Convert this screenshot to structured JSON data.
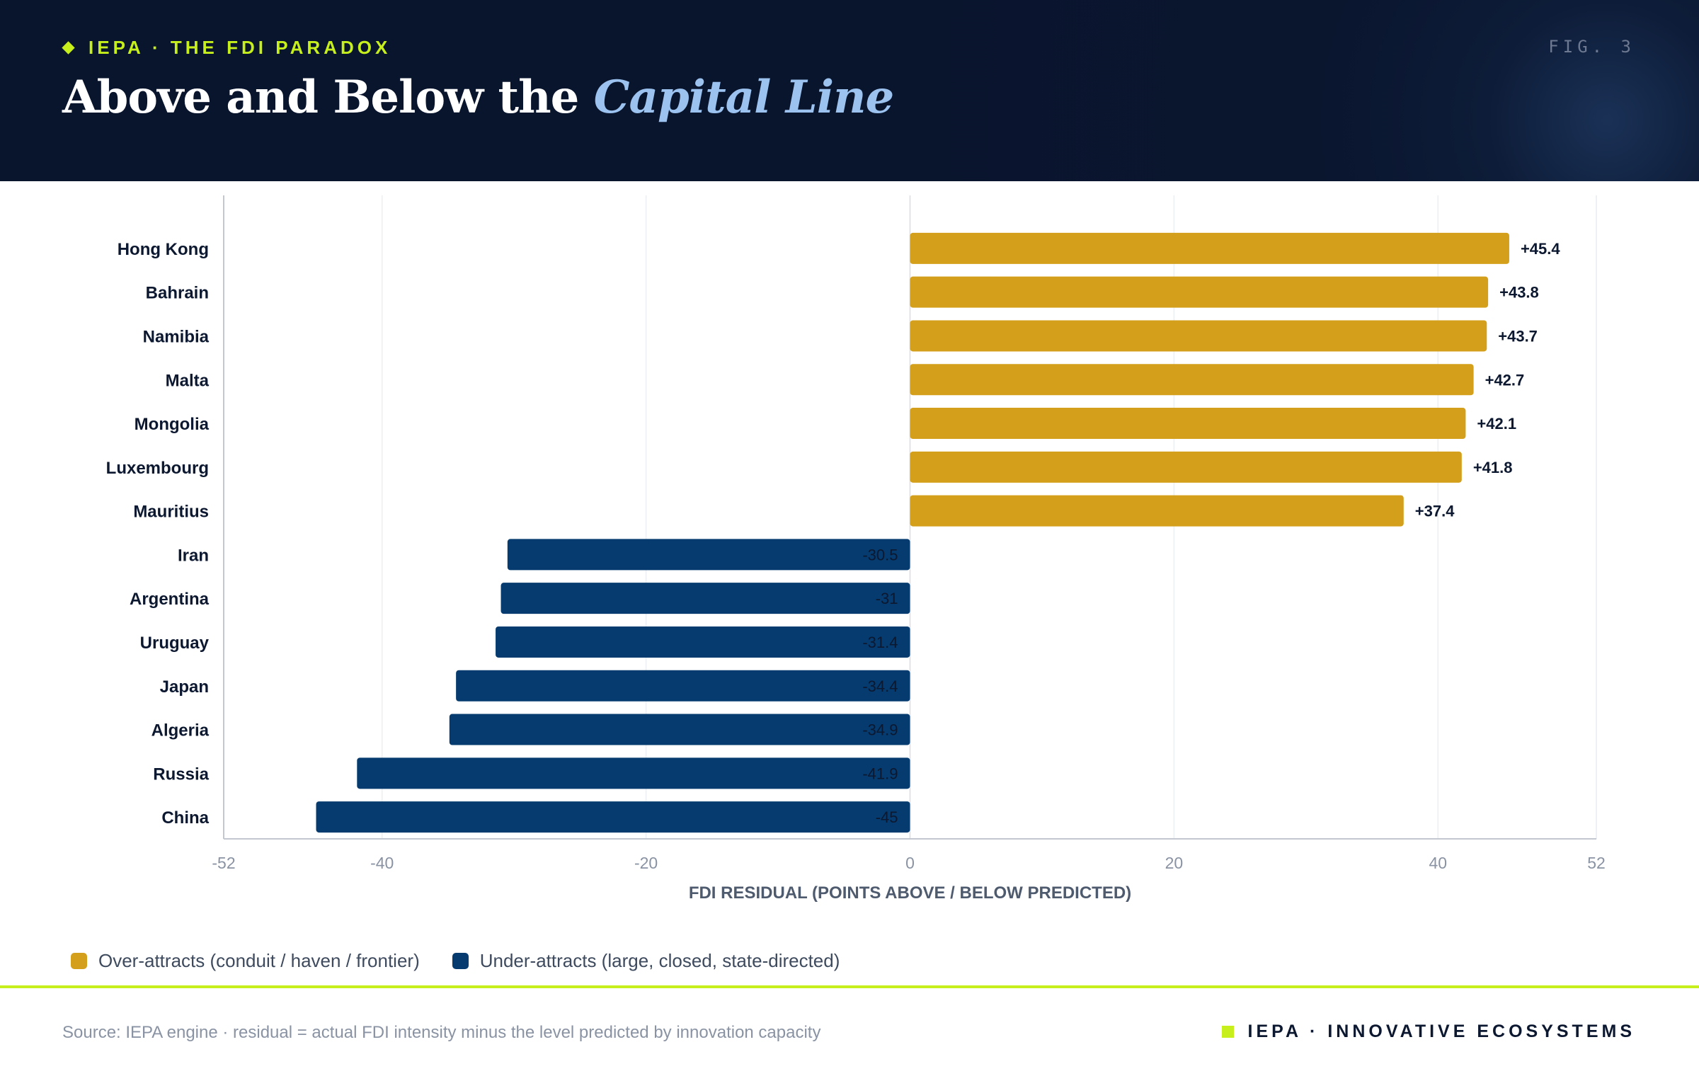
{
  "header": {
    "kicker": "IEPA · THE FDI PARADOX",
    "fig_label": "FIG. 3",
    "title_main": "Above and Below the ",
    "title_accent": "Capital Line"
  },
  "chart_data": {
    "type": "bar",
    "orientation": "horizontal",
    "categories": [
      "Hong Kong",
      "Bahrain",
      "Namibia",
      "Malta",
      "Mongolia",
      "Luxembourg",
      "Mauritius",
      "Iran",
      "Argentina",
      "Uruguay",
      "Japan",
      "Algeria",
      "Russia",
      "China"
    ],
    "values": [
      45.4,
      43.8,
      43.7,
      42.7,
      42.1,
      41.8,
      37.4,
      -30.5,
      -31,
      -31.4,
      -34.4,
      -34.9,
      -41.9,
      -45
    ],
    "value_labels": [
      "+45.4",
      "+43.8",
      "+43.7",
      "+42.7",
      "+42.1",
      "+41.8",
      "+37.4",
      "-30.5",
      "-31",
      "-31.4",
      "-34.4",
      "-34.9",
      "-41.9",
      "-45"
    ],
    "xlabel": "FDI RESIDUAL (POINTS ABOVE / BELOW PREDICTED)",
    "xlim": [
      -52,
      52
    ],
    "xticks": [
      -52,
      -40,
      -20,
      0,
      20,
      40,
      52
    ],
    "grid": "vertical",
    "legend_placement": "bottom-left",
    "colors": {
      "positive": "#d4a01c",
      "negative": "#053b6e"
    }
  },
  "legend": {
    "items": [
      {
        "label": "Over-attracts (conduit / haven / frontier)",
        "color": "#d4a01c"
      },
      {
        "label": "Under-attracts (large, closed, state-directed)",
        "color": "#053b6e"
      }
    ]
  },
  "footer": {
    "source": "Source: IEPA engine · residual = actual FDI intensity minus the level predicted by innovation capacity",
    "brand": "IEPA · INNOVATIVE ECOSYSTEMS"
  }
}
